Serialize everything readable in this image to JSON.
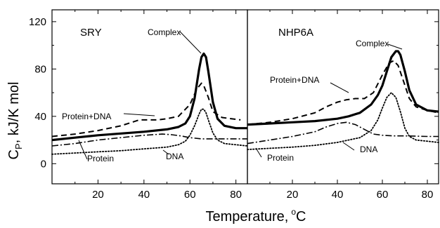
{
  "chart_data": [
    {
      "type": "line",
      "panel_label": "SRY",
      "xlabel": "Temperature, °C",
      "ylabel": "C_P, kJ/K mol",
      "xlim": [
        0,
        85
      ],
      "ylim": [
        -17,
        130
      ],
      "xticks": [
        20,
        40,
        60,
        80
      ],
      "yticks": [
        0,
        40,
        80,
        120
      ],
      "series": [
        {
          "name": "Complex",
          "style": "solid-thick",
          "x": [
            0,
            10,
            20,
            30,
            40,
            50,
            55,
            58,
            60,
            62,
            64,
            65,
            66,
            67,
            68,
            70,
            72,
            75,
            80,
            85
          ],
          "y": [
            20,
            22,
            24,
            25.5,
            27,
            29,
            31,
            34,
            40,
            55,
            80,
            90,
            93,
            90,
            78,
            52,
            38,
            32,
            30,
            30
          ]
        },
        {
          "name": "Protein+DNA",
          "style": "dashed",
          "x": [
            0,
            10,
            20,
            30,
            38,
            42,
            46,
            50,
            55,
            60,
            63,
            65,
            66,
            68,
            70,
            74,
            78,
            82
          ],
          "y": [
            23,
            25,
            28,
            32,
            37,
            37,
            37,
            38,
            40,
            50,
            63,
            68,
            66,
            56,
            44,
            39,
            38,
            37
          ]
        },
        {
          "name": "Protein",
          "style": "dashdot",
          "x": [
            0,
            10,
            20,
            30,
            40,
            48,
            52,
            56,
            60,
            65,
            70,
            80,
            85
          ],
          "y": [
            15,
            17,
            20,
            22,
            24,
            25,
            24.5,
            23.5,
            22,
            21,
            21,
            21,
            21
          ]
        },
        {
          "name": "DNA",
          "style": "dotted",
          "x": [
            0,
            10,
            20,
            30,
            40,
            50,
            55,
            58,
            60,
            62,
            64,
            65,
            66,
            67,
            68,
            70,
            72,
            75,
            80,
            85
          ],
          "y": [
            8,
            9,
            10,
            11,
            12.5,
            14,
            16,
            19,
            24,
            32,
            42,
            46,
            46,
            43,
            37,
            26,
            20,
            17,
            16,
            15
          ]
        }
      ],
      "annotations": [
        "Complex",
        "Protein+DNA",
        "Protein",
        "DNA"
      ]
    },
    {
      "type": "line",
      "panel_label": "NHP6A",
      "xlabel": "Temperature, °C",
      "ylabel": "C_P, kJ/K mol",
      "xlim": [
        0,
        85
      ],
      "ylim": [
        -17,
        130
      ],
      "xticks": [
        20,
        40,
        60,
        80
      ],
      "yticks": [
        0,
        40,
        80,
        120
      ],
      "series": [
        {
          "name": "Complex",
          "style": "solid-thick",
          "x": [
            0,
            10,
            20,
            30,
            40,
            45,
            50,
            55,
            58,
            60,
            62,
            64,
            66,
            67,
            68,
            70,
            72,
            75,
            80,
            85
          ],
          "y": [
            33,
            34,
            35,
            36,
            38,
            40,
            43,
            50,
            58,
            66,
            78,
            90,
            95,
            95,
            92,
            78,
            62,
            50,
            45,
            44
          ]
        },
        {
          "name": "Protein+DNA",
          "style": "dashed",
          "x": [
            0,
            10,
            20,
            30,
            35,
            40,
            44,
            48,
            52,
            56,
            60,
            63,
            65,
            67,
            69,
            72,
            75,
            80,
            85
          ],
          "y": [
            33,
            35,
            38,
            43,
            48,
            52,
            54,
            55,
            55,
            60,
            75,
            85,
            87,
            83,
            72,
            55,
            48,
            45,
            43
          ]
        },
        {
          "name": "Protein",
          "style": "dashdot",
          "x": [
            0,
            10,
            20,
            30,
            35,
            40,
            44,
            48,
            52,
            56,
            60,
            65,
            70,
            80,
            85
          ],
          "y": [
            17,
            20,
            23,
            27,
            31,
            34,
            35,
            33,
            29,
            25,
            24,
            23.5,
            23.5,
            23,
            23
          ]
        },
        {
          "name": "DNA",
          "style": "dotted",
          "x": [
            0,
            10,
            20,
            30,
            40,
            50,
            55,
            58,
            60,
            62,
            64,
            66,
            68,
            70,
            72,
            75,
            80,
            85
          ],
          "y": [
            12,
            13,
            14,
            15.5,
            18,
            22,
            28,
            37,
            47,
            56,
            60,
            56,
            44,
            30,
            23,
            20,
            19,
            18
          ]
        }
      ],
      "annotations": [
        "Complex",
        "Protein+DNA",
        "Protein",
        "DNA"
      ]
    }
  ],
  "labels": {
    "xlabel_main": "Temperature,",
    "xlabel_deg": "o",
    "xlabel_unit": "C",
    "ylabel_main": "C",
    "ylabel_sub": "P",
    "ylabel_rest": ", kJ/K mol"
  }
}
